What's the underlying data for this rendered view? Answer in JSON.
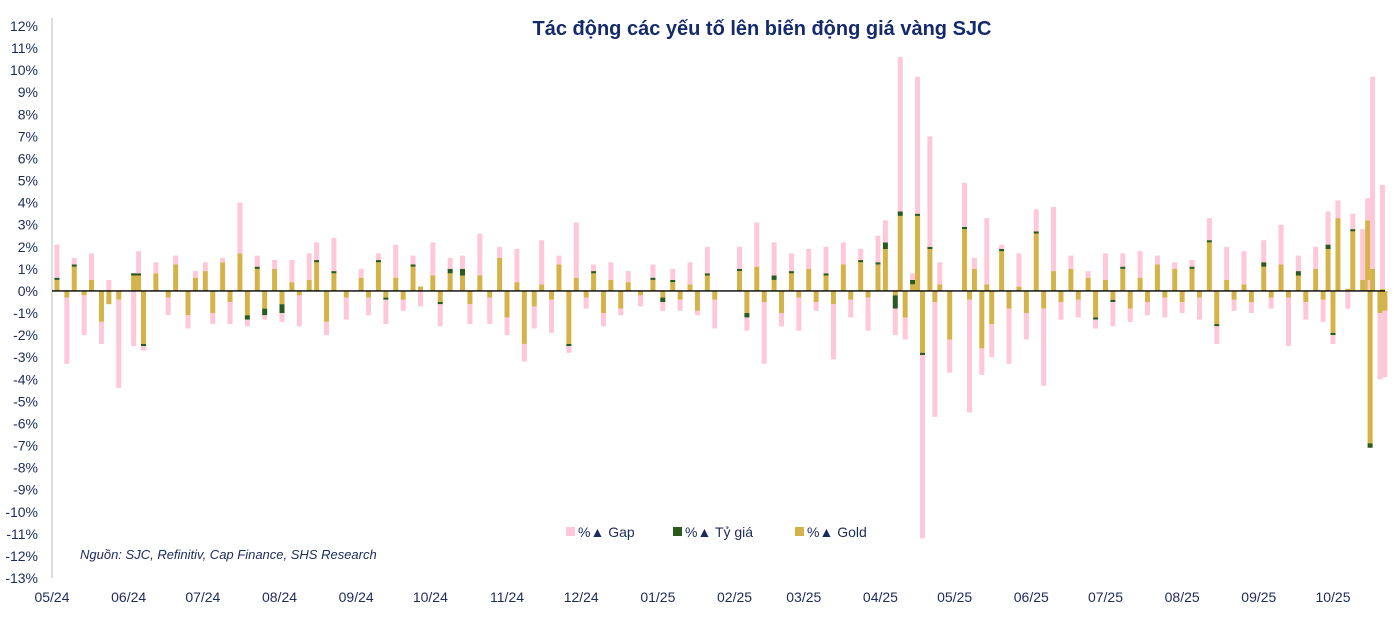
{
  "chart_data": {
    "type": "bar",
    "stacked": true,
    "title": "Tác động các yếu tố lên biến động giá vàng SJC",
    "source": "Nguồn: SJC, Refinitiv, Cap Finance, SHS Research",
    "ylim": [
      -13,
      12
    ],
    "ytick_step": 1,
    "y_unit": "%",
    "x_ticks": [
      "05/24",
      "06/24",
      "07/24",
      "08/24",
      "09/24",
      "10/24",
      "11/24",
      "12/24",
      "01/25",
      "02/25",
      "03/25",
      "04/25",
      "05/25",
      "06/25",
      "07/25",
      "08/25",
      "09/25",
      "10/25"
    ],
    "x_tick_dates": [
      "2024-05-01",
      "2024-06-01",
      "2024-07-01",
      "2024-08-01",
      "2024-09-01",
      "2024-10-01",
      "2024-11-01",
      "2024-12-01",
      "2025-01-01",
      "2025-02-01",
      "2025-03-01",
      "2025-04-01",
      "2025-05-01",
      "2025-06-01",
      "2025-07-01",
      "2025-08-01",
      "2025-09-01",
      "2025-10-01"
    ],
    "grid": false,
    "legend_position": "bottom-center",
    "series": [
      {
        "name": "%▲ Gap",
        "color": "#ffc8d8"
      },
      {
        "name": "%▲ Tỷ giá",
        "color": "#2a5a1e"
      },
      {
        "name": "%▲ Gold",
        "color": "#d4b44a"
      }
    ],
    "points_columns": [
      "date",
      "gap",
      "ty_gia",
      "gold"
    ],
    "points": [
      [
        "2024-05-03",
        1.5,
        0.1,
        0.5
      ],
      [
        "2024-05-07",
        -3.0,
        0,
        -0.3
      ],
      [
        "2024-05-10",
        0.3,
        0.1,
        1.1
      ],
      [
        "2024-05-14",
        -1.8,
        0,
        -0.2
      ],
      [
        "2024-05-17",
        1.2,
        0,
        0.5
      ],
      [
        "2024-05-21",
        -1.0,
        0,
        -1.4
      ],
      [
        "2024-05-24",
        0.5,
        0,
        -0.6
      ],
      [
        "2024-05-28",
        -4.0,
        0,
        -0.4
      ],
      [
        "2024-06-03",
        -2.5,
        0.1,
        0.7
      ],
      [
        "2024-06-05",
        1.0,
        0.1,
        0.7
      ],
      [
        "2024-06-07",
        -0.2,
        -0.1,
        -2.4
      ],
      [
        "2024-06-12",
        0.5,
        0,
        0.8
      ],
      [
        "2024-06-17",
        -0.8,
        0,
        -0.3
      ],
      [
        "2024-06-20",
        0.4,
        0,
        1.2
      ],
      [
        "2024-06-25",
        -0.6,
        0,
        -1.1
      ],
      [
        "2024-06-28",
        0.3,
        0,
        0.6
      ],
      [
        "2024-07-02",
        0.4,
        0,
        0.9
      ],
      [
        "2024-07-05",
        -0.5,
        0,
        -1.0
      ],
      [
        "2024-07-09",
        0.2,
        0,
        1.3
      ],
      [
        "2024-07-12",
        -1.0,
        0,
        -0.5
      ],
      [
        "2024-07-16",
        2.3,
        0,
        1.7
      ],
      [
        "2024-07-19",
        -0.3,
        -0.2,
        -1.1
      ],
      [
        "2024-07-23",
        0.5,
        0.1,
        1.0
      ],
      [
        "2024-07-26",
        -0.2,
        -0.3,
        -0.8
      ],
      [
        "2024-07-30",
        0.4,
        0,
        1.0
      ],
      [
        "2024-08-02",
        -0.4,
        -0.4,
        -0.6
      ],
      [
        "2024-08-06",
        1.0,
        0,
        0.4
      ],
      [
        "2024-08-09",
        -1.4,
        0,
        -0.2
      ],
      [
        "2024-08-13",
        1.2,
        0,
        0.5
      ],
      [
        "2024-08-16",
        0.8,
        0.1,
        1.3
      ],
      [
        "2024-08-20",
        -0.6,
        0,
        -1.4
      ],
      [
        "2024-08-23",
        1.5,
        0.1,
        0.8
      ],
      [
        "2024-08-28",
        -1.0,
        0,
        -0.3
      ],
      [
        "2024-09-03",
        0.4,
        0,
        0.6
      ],
      [
        "2024-09-06",
        -0.8,
        0,
        -0.3
      ],
      [
        "2024-09-10",
        0.3,
        0.1,
        1.3
      ],
      [
        "2024-09-13",
        -1.1,
        -0.1,
        -0.3
      ],
      [
        "2024-09-17",
        1.5,
        0,
        0.6
      ],
      [
        "2024-09-20",
        -0.5,
        0,
        -0.4
      ],
      [
        "2024-09-24",
        0.4,
        0.1,
        1.1
      ],
      [
        "2024-09-27",
        -0.7,
        0,
        0.2
      ],
      [
        "2024-10-02",
        1.5,
        0,
        0.7
      ],
      [
        "2024-10-05",
        -1.0,
        -0.1,
        -0.5
      ],
      [
        "2024-10-09",
        0.5,
        0.2,
        0.8
      ],
      [
        "2024-10-14",
        0.6,
        0.3,
        0.7
      ],
      [
        "2024-10-17",
        -0.9,
        0,
        -0.6
      ],
      [
        "2024-10-21",
        1.9,
        0,
        0.7
      ],
      [
        "2024-10-25",
        -1.2,
        0,
        -0.3
      ],
      [
        "2024-10-29",
        0.5,
        0,
        1.5
      ],
      [
        "2024-11-01",
        -0.8,
        0,
        -1.2
      ],
      [
        "2024-11-05",
        1.5,
        0,
        0.4
      ],
      [
        "2024-11-08",
        -0.8,
        0,
        -2.4
      ],
      [
        "2024-11-12",
        -1.0,
        0,
        -0.7
      ],
      [
        "2024-11-15",
        2.0,
        0,
        0.3
      ],
      [
        "2024-11-19",
        -1.5,
        0,
        -0.4
      ],
      [
        "2024-11-22",
        0.4,
        0,
        1.2
      ],
      [
        "2024-11-26",
        -0.3,
        -0.1,
        -2.4
      ],
      [
        "2024-11-29",
        2.5,
        0,
        0.6
      ],
      [
        "2024-12-03",
        -0.5,
        0,
        -0.3
      ],
      [
        "2024-12-06",
        0.3,
        0.1,
        0.8
      ],
      [
        "2024-12-10",
        -0.6,
        0,
        -1.0
      ],
      [
        "2024-12-13",
        0.8,
        0,
        0.5
      ],
      [
        "2024-12-17",
        -0.3,
        0,
        -0.8
      ],
      [
        "2024-12-20",
        0.5,
        0,
        0.4
      ],
      [
        "2024-12-25",
        -0.5,
        0,
        -0.2
      ],
      [
        "2024-12-30",
        0.6,
        0.1,
        0.5
      ],
      [
        "2025-01-03",
        -0.4,
        -0.2,
        -0.3
      ],
      [
        "2025-01-07",
        0.5,
        0.1,
        0.4
      ],
      [
        "2025-01-10",
        -0.5,
        0,
        -0.4
      ],
      [
        "2025-01-14",
        1.0,
        0,
        0.3
      ],
      [
        "2025-01-17",
        -0.2,
        0,
        -0.9
      ],
      [
        "2025-01-21",
        1.2,
        0.1,
        0.7
      ],
      [
        "2025-01-24",
        -1.3,
        0,
        -0.4
      ],
      [
        "2025-02-03",
        1.0,
        0.1,
        0.9
      ],
      [
        "2025-02-06",
        -0.6,
        -0.2,
        -1.0
      ],
      [
        "2025-02-10",
        2.0,
        0,
        1.1
      ],
      [
        "2025-02-13",
        -2.8,
        0,
        -0.5
      ],
      [
        "2025-02-17",
        1.5,
        0.2,
        0.5
      ],
      [
        "2025-02-20",
        -0.6,
        0,
        -1.0
      ],
      [
        "2025-02-24",
        0.8,
        0.1,
        0.8
      ],
      [
        "2025-02-27",
        -1.5,
        0,
        -0.3
      ],
      [
        "2025-03-03",
        0.9,
        0,
        1.0
      ],
      [
        "2025-03-06",
        -0.4,
        0,
        -0.5
      ],
      [
        "2025-03-10",
        1.2,
        0.1,
        0.7
      ],
      [
        "2025-03-13",
        -2.5,
        0,
        -0.6
      ],
      [
        "2025-03-17",
        1.0,
        0,
        1.2
      ],
      [
        "2025-03-20",
        -0.8,
        0,
        -0.4
      ],
      [
        "2025-03-24",
        0.5,
        0.1,
        1.3
      ],
      [
        "2025-03-27",
        -1.5,
        0,
        -0.3
      ],
      [
        "2025-03-31",
        1.2,
        0.1,
        1.2
      ],
      [
        "2025-04-03",
        1.0,
        0.3,
        1.9
      ],
      [
        "2025-04-07",
        -1.2,
        -0.6,
        -0.2
      ],
      [
        "2025-04-09",
        7.0,
        0.2,
        3.4
      ],
      [
        "2025-04-11",
        -1.0,
        0,
        -1.2
      ],
      [
        "2025-04-14",
        0.3,
        0.2,
        0.3
      ],
      [
        "2025-04-16",
        6.2,
        0.1,
        3.4
      ],
      [
        "2025-04-18",
        -8.3,
        -0.1,
        -2.8
      ],
      [
        "2025-04-21",
        5.0,
        0.1,
        1.9
      ],
      [
        "2025-04-23",
        -5.2,
        0,
        -0.5
      ],
      [
        "2025-04-25",
        1.0,
        0,
        0.3
      ],
      [
        "2025-04-29",
        -1.5,
        0,
        -2.2
      ],
      [
        "2025-05-05",
        2.0,
        0.1,
        2.8
      ],
      [
        "2025-05-07",
        -5.1,
        0,
        -0.4
      ],
      [
        "2025-05-09",
        0.5,
        0,
        1.0
      ],
      [
        "2025-05-12",
        -1.2,
        0,
        -2.6
      ],
      [
        "2025-05-14",
        3.0,
        0,
        0.3
      ],
      [
        "2025-05-16",
        -1.5,
        0,
        -1.5
      ],
      [
        "2025-05-20",
        0.2,
        0.1,
        1.8
      ],
      [
        "2025-05-23",
        -2.5,
        0,
        -0.8
      ],
      [
        "2025-05-27",
        1.5,
        0,
        0.2
      ],
      [
        "2025-05-30",
        -1.2,
        0,
        -1.0
      ],
      [
        "2025-06-03",
        1.0,
        0.1,
        2.6
      ],
      [
        "2025-06-06",
        -3.5,
        0,
        -0.8
      ],
      [
        "2025-06-10",
        2.9,
        0,
        0.9
      ],
      [
        "2025-06-13",
        -0.8,
        0,
        -0.5
      ],
      [
        "2025-06-17",
        0.6,
        0,
        1.0
      ],
      [
        "2025-06-20",
        -0.8,
        0,
        -0.4
      ],
      [
        "2025-06-24",
        0.3,
        0,
        0.6
      ],
      [
        "2025-06-27",
        -0.4,
        -0.1,
        -1.2
      ],
      [
        "2025-07-01",
        1.2,
        0,
        0.5
      ],
      [
        "2025-07-04",
        -1.1,
        -0.1,
        -0.4
      ],
      [
        "2025-07-08",
        0.6,
        0.1,
        1.0
      ],
      [
        "2025-07-11",
        -0.6,
        0,
        -0.8
      ],
      [
        "2025-07-15",
        1.2,
        0,
        0.6
      ],
      [
        "2025-07-18",
        -0.6,
        0,
        -0.5
      ],
      [
        "2025-07-22",
        0.4,
        0,
        1.2
      ],
      [
        "2025-07-25",
        -0.9,
        0,
        -0.3
      ],
      [
        "2025-07-29",
        0.3,
        0,
        1.0
      ],
      [
        "2025-08-01",
        -0.5,
        0,
        -0.5
      ],
      [
        "2025-08-05",
        0.3,
        0.1,
        1.0
      ],
      [
        "2025-08-08",
        -1.0,
        0,
        -0.3
      ],
      [
        "2025-08-12",
        1.0,
        0.1,
        2.2
      ],
      [
        "2025-08-15",
        -0.8,
        -0.1,
        -1.5
      ],
      [
        "2025-08-19",
        1.5,
        0,
        0.5
      ],
      [
        "2025-08-22",
        -0.5,
        0,
        -0.4
      ],
      [
        "2025-08-26",
        1.5,
        0,
        0.3
      ],
      [
        "2025-08-29",
        -0.5,
        0,
        -0.5
      ],
      [
        "2025-09-03",
        1.0,
        0.2,
        1.1
      ],
      [
        "2025-09-06",
        -0.5,
        0,
        -0.3
      ],
      [
        "2025-09-10",
        1.8,
        0,
        1.2
      ],
      [
        "2025-09-13",
        -2.2,
        0,
        -0.3
      ],
      [
        "2025-09-17",
        0.7,
        0.2,
        0.7
      ],
      [
        "2025-09-20",
        -0.8,
        0,
        -0.5
      ],
      [
        "2025-09-24",
        1.0,
        0,
        1.0
      ],
      [
        "2025-09-27",
        -1.0,
        0,
        -0.4
      ],
      [
        "2025-09-29",
        1.5,
        0.2,
        1.9
      ],
      [
        "2025-10-01",
        -0.4,
        -0.1,
        -1.9
      ],
      [
        "2025-10-03",
        0.8,
        0,
        3.3
      ],
      [
        "2025-10-07",
        -0.8,
        0,
        0.1
      ],
      [
        "2025-10-09",
        0.7,
        0.1,
        2.7
      ],
      [
        "2025-10-13",
        2.3,
        0,
        0.5
      ],
      [
        "2025-10-15",
        1.0,
        0,
        3.2
      ],
      [
        "2025-10-16",
        0.5,
        -0.2,
        -6.9
      ],
      [
        "2025-10-17",
        8.7,
        0,
        1.0
      ],
      [
        "2025-10-20",
        -3.0,
        0,
        -1.0
      ],
      [
        "2025-10-21",
        4.7,
        0,
        0.1
      ],
      [
        "2025-10-22",
        -3.0,
        0,
        -0.9
      ]
    ]
  }
}
